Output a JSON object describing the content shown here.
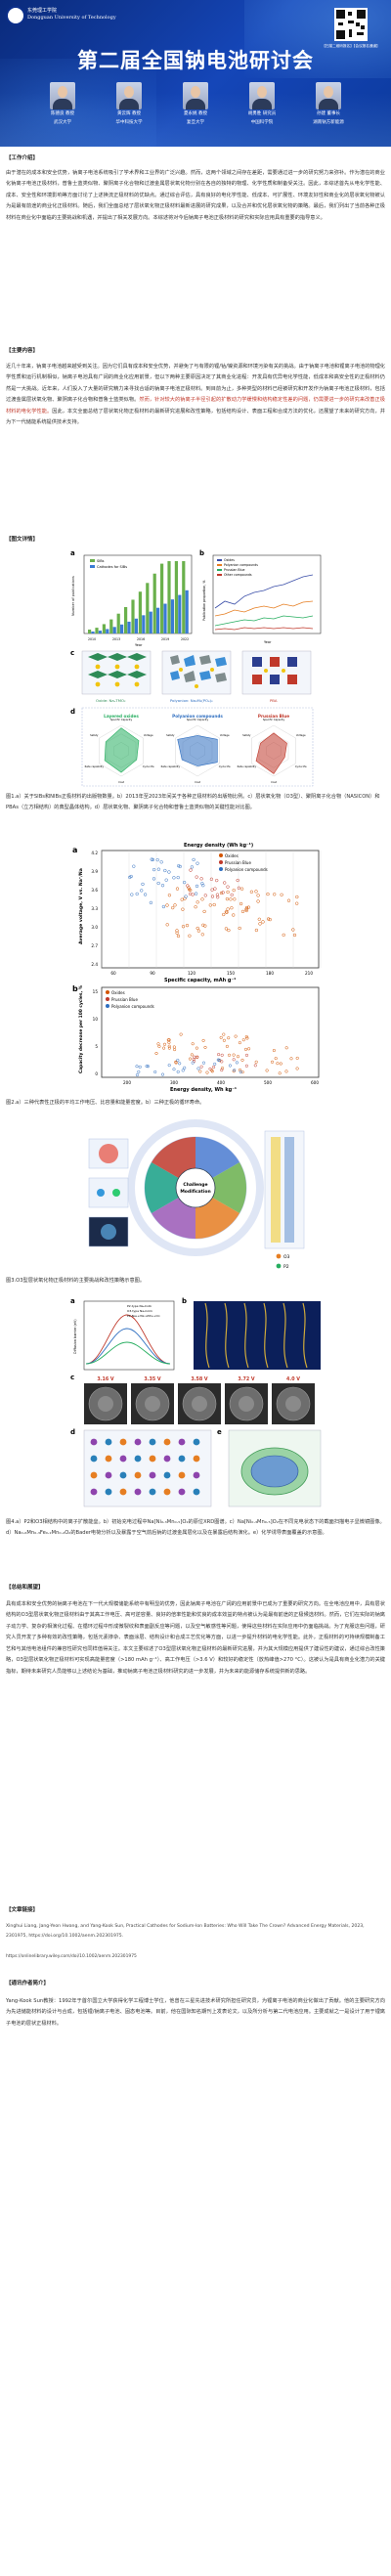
{
  "banner": {
    "university_name": "Dongguan University of Technology",
    "university_name_cn": "东莞理工学院",
    "title": "第二届全国钠电池研讨会",
    "qr_caption": "【扫描二维码报名】【会议报名通道】",
    "speakers": [
      {
        "name": "陈德良 教授",
        "org": "武汉大学"
      },
      {
        "name": "黄云辉 教授",
        "org": "华中科技大学"
      },
      {
        "name": "夏永姚 教授",
        "org": "复旦大学"
      },
      {
        "name": "胡勇胜 研究员",
        "org": "中国科学院"
      },
      {
        "name": "孙建 董事长",
        "org": "湖南钠方新能源"
      }
    ]
  },
  "sections": {
    "work_intro": {
      "heading": "【工作介绍】",
      "text": "由于潜在的成本和安全优势，钠离子电池系统吸引了学术界和工业界的广泛兴趣。然而，这两个领域之间存在差距，需要通过进一步的研究努力来弥补。作为潜在的商业化钠离子电池正极材料，普鲁士蓝类似物、聚阴离子化合物和过渡金属层状氧化物分别在各自的独特的物理、化学性质和制备受关注。因此，本综述首先从电化学性能、成本、安全性和环境影响等方面讨论了上述换流正极材料的优缺点。通过综合评估，具有良好的电化学性能、低成本、可扩展性、环境友好性和商业化的层状氧化物被认为是最有前途的商业化正极材料。随后，我们全面总结了层状氧化物正极材料最新进展的研究成果，以及合并和优化层状氧化物的策略。最后，我们列出了当前各种正极材料在商业化中面临的主要挑战和机遇，并提出了相关发展方向。本综述将对今后钠离子电池正极材料的研究和实际应用具有重要的指导意义。"
    },
    "main_content": {
      "heading": "【主要内容】",
      "text_before": "近几十年来，钠离子电池越来越受到关注。因为它们具有成本和安全优势，并避免了与有限的锂/钴/镍资源和环境污染有关的挑战。由于钠离子电池和锂离子电池的物理化学性质和运行机制相似，钠离子电池具有广阔的商业化应用前景，但以下两种主要原因决定了其商业化进程：开发具有优异电化学性能，低成本和高安全性的正极材料仍然是一大挑战。近年来，人们投入了大量的研究精力来寻找合适的钠离子电池正极材料。到目前为止，多种类型的材料已经被研究和开发作为钠离子电池正极材料，包括过渡金属层状氧化物、聚阴离子化合物和普鲁士蓝类似物。",
      "text_highlight": "然而，针对较大的钠离子半径引起的扩散动力学缓慢和结构稳定性差的问题，仍需要进一步的研究来改善正极材料的电化学性能。",
      "text_after": "因此，本文全面总结了层状氧化物正极材料的最新研究进展和改性策略，包括结构设计、表面工程和合成方法的优化，还展望了未来的研究方向，并为下一代储能系统提供技术支持。"
    },
    "figures_heading": "【图文详情】",
    "fig1_caption": "图1.a）关于SIBs和NIBs正极材料的出版物数量。b）2013年至2023年间关于各种正极材料的出版物比例。c）层状氧化物（O3型）、聚阴离子化合物（NASICON）和PBAs（立方相结构）的典型晶体结构。d）层状氧化物、聚阴离子化合物和普鲁士蓝类似物的关键性能对比图。",
    "fig2_caption": "图2.a）三种代表性正极的平均工作电压、比容量和能量密度。b）三种正极的循环寿命。",
    "fig3_caption": "图3.O3型层状氧化物正极材料的主要挑战和改性策略示意图。",
    "fig4_caption": "图4.a）P2和O3相结构中的离子扩散能垒。b）初始充电过程中Na[Ni₀.₃Mn₀.₅]O₂的原位XRD图谱。c）Na[Ni₀.₃Mn₀.₅]O₂在不同充电状态下的截面扫描电子显微镜图像。d）Na₀.₆Mn₀.₃Fe₀.₂Mn₀.₄O₂的Bader电荷分析以及暴露于空气前后钠的过渡金属层化以及在暴露后结构演化。e）化学诱导表面覆盖的示意图。",
    "summary": {
      "heading": "【总结和展望】",
      "text": "具有成本和安全优势的钠离子电池在下一代大规模储能系统中有明显的优势，因此钠离子电池在广阔的应用前景中已成为了重要的研究方向。在全电池应用中，具有层状结构的O3型层状氧化物正极材料由于其高工作电压、高可逆容量、良好的倍率性能和优良的成本效益的特点被认为是最有前途的正极候选材料。然而，它们在实际的钠离子动力学、复杂的相演化过程、在循环过程中形成微裂纹和表面副反应等问题，以及空气敏感性等问题，使得这些材料在实际应用中仍面临挑战。为了克服这些问题，研究人员开发了多种有效的改性策略，包括元素掺杂、表面涂层、结构设计和合成工艺优化等方面，以进一步提升材料的电化学性能。此外，正极材料的可持续规模制备工艺和与其他电池组件的兼容性研究也同样值得关注。本文主要综述了O3型层状氧化物正极材料的最新研究进展，并为其大规模应用提供了建设性的建议，通过综合改性策略，O3型层状氧化物正极材料可实现高能量密度（>180 mAh g⁻¹）、高工作电压（>3.6 V）和较好的稳定性（放热峰值>270 °C）。这被认为是具有商业化潜力的关键指标，期待未来研究人员能够以上述结论为基础，推动钠离子电池正极材料研究的进一步发展，并为未来的能源储存系统提供新的思路。"
    },
    "article_info": {
      "heading": "【文章链接】",
      "citation": "Xinghui Liang, Jang-Yeon Hwang, and Yang-Kook Sun, Practical Cathodes for Sodium-Ion Batteries: Who Will Take The Crown? Advanced Energy Materials, 2023, 2301975, https://doi.org/10.1002/aenm.202301975.",
      "url": "https://onlinelibrary.wiley.com/doi/10.1002/aenm.202301975"
    },
    "author": {
      "heading": "【通讯作者简介】",
      "text": "Yang-Kook Sun教授：1992年于首尔国立大学获得化学工程博士学位，他曾在三星先进技术研究所担任研究员，为锂离子电池的商业化做出了贡献。他的主要研究方向为先进储能材料的设计与合成，包括锂/钠离子电池、固态电池等。目前，他在国际知名期刊上发表论文，以及所分析与第二代电池应用。主要成就之一是设计了用于锂离子电池的层状正极材料。"
    }
  },
  "fig1": {
    "panel_a_legend": [
      "SIBs",
      "Cathodes for SIBs"
    ],
    "panel_a_axis": "Number of publications",
    "panel_a_xlabel": "Year",
    "panel_a_xticks": [
      "2010",
      "2013",
      "2016",
      "2019",
      "2022"
    ],
    "panel_b_legend": [
      "Oxides",
      "Polyanion compounds",
      "Prussian Blue",
      "Other compounds"
    ],
    "panel_b_axis": "Publication proportion, %",
    "panel_b_xlabel": "Year",
    "panel_c_labels": [
      "Oxide: NaₓTMO₂",
      "Polyanion: Na₃M₂(PO₄)₃",
      "PBA"
    ],
    "panel_d_titles": [
      "Layered oxides",
      "Polyanion compounds",
      "Prussian Blue"
    ],
    "panel_d_axes": [
      "Specific Capacity",
      "Voltage",
      "Cycle life",
      "Cost",
      "Rate capability",
      "Safety"
    ]
  },
  "fig2": {
    "top_title": "Energy density (Wh kg⁻¹)",
    "legend": [
      "Oxides",
      "Prussian Blue",
      "Polyanion compounds"
    ],
    "a_ylabel": "Average voltage, V vs. Na⁺/Na",
    "a_xlabel": "Specific capacity, mAh g⁻¹",
    "a_xticks": [
      "60",
      "90",
      "120",
      "150",
      "180",
      "210"
    ],
    "a_yticks": [
      "2.4",
      "2.7",
      "3.0",
      "3.3",
      "3.6",
      "3.9",
      "4.2"
    ],
    "b_ylabel": "Capacity decrease per 100 cycles, %",
    "b_xlabel": "Energy density, Wh kg⁻¹",
    "b_xticks": [
      "200",
      "300",
      "400",
      "500",
      "600"
    ],
    "b_yticks": [
      "0",
      "5",
      "10",
      "15"
    ]
  },
  "fig3": {
    "center_labels": [
      "Challenge",
      "Modification"
    ],
    "legend_labels": [
      "O3",
      "P2"
    ]
  },
  "fig4": {
    "a_legend": [
      "P2-type NaₓCoO₂",
      "O3-type NaₓCoO₂",
      "P2-Na₀.₆₇Ni₀.₃₃Mn₀.₆₇O₂"
    ],
    "a_ylabel": "Diffusion barrier (eV)",
    "c_voltages": [
      "3.16 V",
      "3.35 V",
      "3.58 V",
      "3.72 V",
      "4.0 V"
    ]
  }
}
